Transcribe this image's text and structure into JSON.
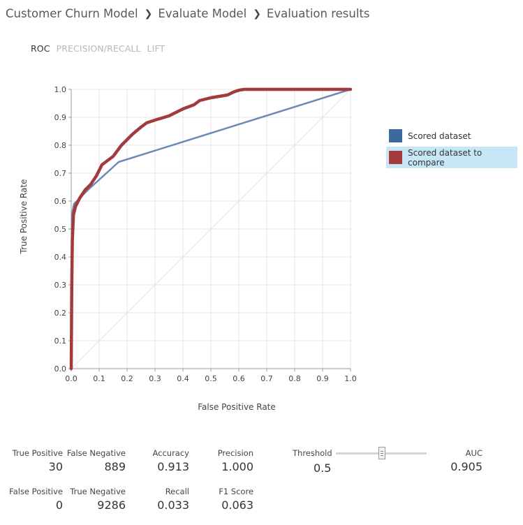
{
  "breadcrumb": {
    "items": [
      "Customer Churn Model",
      "Evaluate Model",
      "Evaluation results"
    ],
    "separator_icon": "chevron-right"
  },
  "tabs": [
    {
      "label": "ROC",
      "active": true
    },
    {
      "label": "PRECISION/RECALL",
      "active": false
    },
    {
      "label": "LIFT",
      "active": false
    }
  ],
  "legend": [
    {
      "label": "Scored dataset",
      "color": "#3c6a9e",
      "selected": false
    },
    {
      "label": "Scored dataset to compare",
      "color": "#a23b3b",
      "selected": true
    }
  ],
  "chart_data": {
    "type": "line",
    "title": "",
    "xlabel": "False Positive Rate",
    "ylabel": "True Positive Rate",
    "xlim": [
      0,
      1
    ],
    "ylim": [
      0,
      1
    ],
    "xticks": [
      "0.0",
      "0.1",
      "0.2",
      "0.3",
      "0.4",
      "0.5",
      "0.6",
      "0.7",
      "0.8",
      "0.9",
      "1.0"
    ],
    "yticks": [
      "0.0",
      "0.1",
      "0.2",
      "0.3",
      "0.4",
      "0.5",
      "0.6",
      "0.7",
      "0.8",
      "0.9",
      "1.0"
    ],
    "grid": true,
    "diagonal_reference": true,
    "legend_position": "right",
    "series": [
      {
        "name": "Scored dataset",
        "color": "#6a8ab3",
        "x": [
          0,
          0.002,
          0.01,
          0.06,
          0.17,
          1.0
        ],
        "y": [
          0,
          0.55,
          0.59,
          0.64,
          0.74,
          1.0
        ]
      },
      {
        "name": "Scored dataset to compare",
        "color": "#a23b3b",
        "x": [
          0,
          0.002,
          0.004,
          0.008,
          0.015,
          0.03,
          0.05,
          0.07,
          0.09,
          0.11,
          0.13,
          0.15,
          0.18,
          0.2,
          0.22,
          0.25,
          0.27,
          0.3,
          0.35,
          0.4,
          0.44,
          0.46,
          0.5,
          0.53,
          0.56,
          0.58,
          0.6,
          0.62,
          1.0
        ],
        "y": [
          0,
          0.3,
          0.46,
          0.55,
          0.58,
          0.61,
          0.64,
          0.66,
          0.69,
          0.73,
          0.745,
          0.76,
          0.8,
          0.82,
          0.84,
          0.865,
          0.88,
          0.89,
          0.905,
          0.93,
          0.945,
          0.96,
          0.97,
          0.975,
          0.98,
          0.99,
          0.997,
          1.0,
          1.0
        ]
      }
    ]
  },
  "metrics": {
    "true_positive": {
      "label": "True Positive",
      "value": "30"
    },
    "false_negative": {
      "label": "False Negative",
      "value": "889"
    },
    "accuracy": {
      "label": "Accuracy",
      "value": "0.913"
    },
    "precision": {
      "label": "Precision",
      "value": "1.000"
    },
    "false_positive": {
      "label": "False Positive",
      "value": "0"
    },
    "true_negative": {
      "label": "True Negative",
      "value": "9286"
    },
    "recall": {
      "label": "Recall",
      "value": "0.033"
    },
    "f1_score": {
      "label": "F1 Score",
      "value": "0.063"
    },
    "auc": {
      "label": "AUC",
      "value": "0.905"
    }
  },
  "threshold": {
    "label": "Threshold",
    "value": "0.5",
    "slider_level": 0.5
  }
}
